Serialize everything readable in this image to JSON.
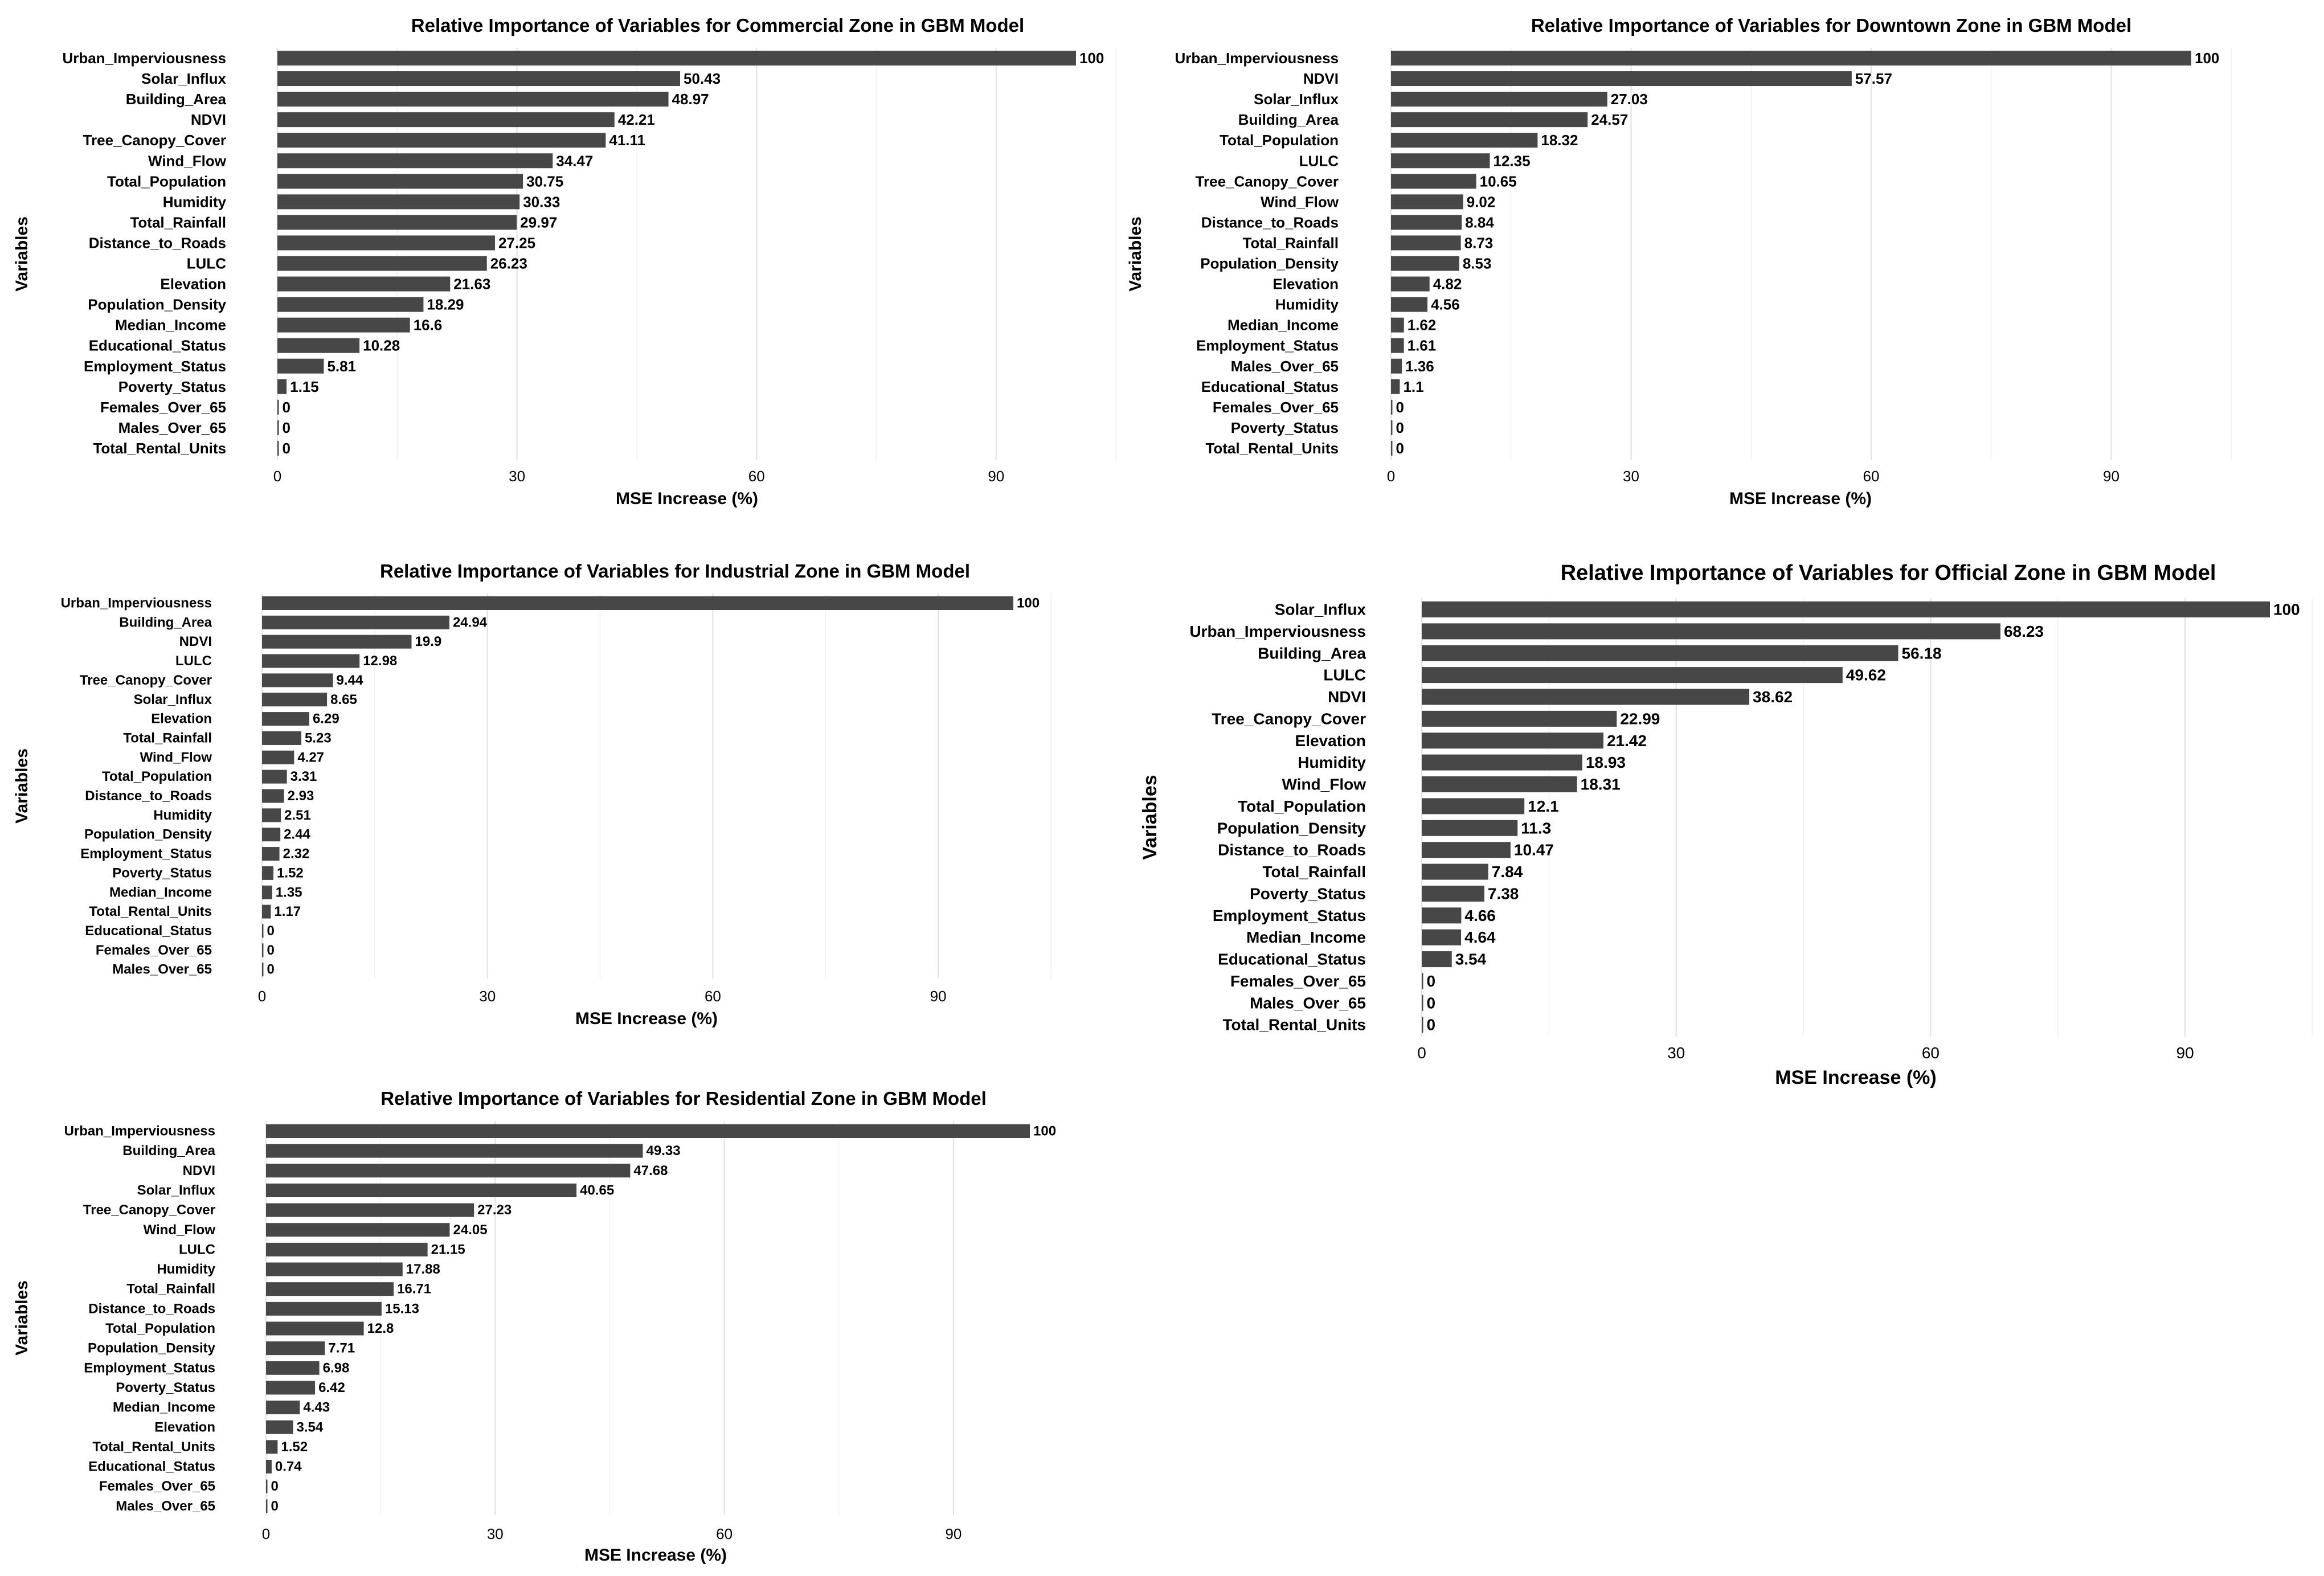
{
  "chart_data": [
    {
      "type": "bar",
      "orientation": "horizontal",
      "title": "Relative Importance of Variables for Commercial Zone in GBM Model",
      "xlabel": "MSE Increase (%)",
      "ylabel": "Variables",
      "xlim": [
        0,
        105
      ],
      "xticks": [
        "0",
        "30",
        "60",
        "90"
      ],
      "grid": true,
      "bar_color": "#474747",
      "categories": [
        "Urban_Imperviousness",
        "Solar_Influx",
        "Building_Area",
        "NDVI",
        "Tree_Canopy_Cover",
        "Wind_Flow",
        "Total_Population",
        "Humidity",
        "Total_Rainfall",
        "Distance_to_Roads",
        "LULC",
        "Elevation",
        "Population_Density",
        "Median_Income",
        "Educational_Status",
        "Employment_Status",
        "Poverty_Status",
        "Females_Over_65",
        "Males_Over_65",
        "Total_Rental_Units"
      ],
      "values": [
        100,
        50.43,
        48.97,
        42.21,
        41.11,
        34.47,
        30.75,
        30.33,
        29.97,
        27.25,
        26.23,
        21.63,
        18.29,
        16.6,
        10.28,
        5.81,
        1.15,
        0,
        0,
        0
      ],
      "value_labels": [
        "100",
        "50.43",
        "48.97",
        "42.21",
        "41.11",
        "34.47",
        "30.75",
        "30.33",
        "29.97",
        "27.25",
        "26.23",
        "21.63",
        "18.29",
        "16.6",
        "10.28",
        "5.81",
        "1.15",
        "0",
        "0",
        "0"
      ]
    },
    {
      "type": "bar",
      "orientation": "horizontal",
      "title": "Relative Importance of Variables for Downtown Zone in GBM Model",
      "xlabel": "MSE Increase (%)",
      "ylabel": "Variables",
      "xlim": [
        0,
        105
      ],
      "xticks": [
        "0",
        "30",
        "60",
        "90"
      ],
      "grid": true,
      "bar_color": "#474747",
      "categories": [
        "Urban_Imperviousness",
        "NDVI",
        "Solar_Influx",
        "Building_Area",
        "Total_Population",
        "LULC",
        "Tree_Canopy_Cover",
        "Wind_Flow",
        "Distance_to_Roads",
        "Total_Rainfall",
        "Population_Density",
        "Elevation",
        "Humidity",
        "Median_Income",
        "Employment_Status",
        "Males_Over_65",
        "Educational_Status",
        "Females_Over_65",
        "Poverty_Status",
        "Total_Rental_Units"
      ],
      "values": [
        100,
        57.57,
        27.03,
        24.57,
        18.32,
        12.35,
        10.65,
        9.02,
        8.84,
        8.73,
        8.53,
        4.82,
        4.56,
        1.62,
        1.61,
        1.36,
        1.1,
        0,
        0,
        0
      ],
      "value_labels": [
        "100",
        "57.57",
        "27.03",
        "24.57",
        "18.32",
        "12.35",
        "10.65",
        "9.02",
        "8.84",
        "8.73",
        "8.53",
        "4.82",
        "4.56",
        "1.62",
        "1.61",
        "1.36",
        "1.1",
        "0",
        "0",
        "0"
      ]
    },
    {
      "type": "bar",
      "orientation": "horizontal",
      "title": "Relative Importance of Variables for Industrial Zone in GBM Model",
      "xlabel": "MSE Increase (%)",
      "ylabel": "Variables",
      "xlim": [
        0,
        105
      ],
      "xticks": [
        "0",
        "30",
        "60",
        "90"
      ],
      "grid": true,
      "bar_color": "#474747",
      "categories": [
        "Urban_Imperviousness",
        "Building_Area",
        "NDVI",
        "LULC",
        "Tree_Canopy_Cover",
        "Solar_Influx",
        "Elevation",
        "Total_Rainfall",
        "Wind_Flow",
        "Total_Population",
        "Distance_to_Roads",
        "Humidity",
        "Population_Density",
        "Employment_Status",
        "Poverty_Status",
        "Median_Income",
        "Total_Rental_Units",
        "Educational_Status",
        "Females_Over_65",
        "Males_Over_65"
      ],
      "values": [
        100,
        24.94,
        19.9,
        12.98,
        9.44,
        8.65,
        6.29,
        5.23,
        4.27,
        3.31,
        2.93,
        2.51,
        2.44,
        2.32,
        1.52,
        1.35,
        1.17,
        0,
        0,
        0
      ],
      "value_labels": [
        "100",
        "24.94",
        "19.9",
        "12.98",
        "9.44",
        "8.65",
        "6.29",
        "5.23",
        "4.27",
        "3.31",
        "2.93",
        "2.51",
        "2.44",
        "2.32",
        "1.52",
        "1.35",
        "1.17",
        "0",
        "0",
        "0"
      ]
    },
    {
      "type": "bar",
      "orientation": "horizontal",
      "title": "Relative Importance of Variables for Official Zone in GBM Model",
      "xlabel": "MSE Increase (%)",
      "ylabel": "Variables",
      "xlim": [
        0,
        105
      ],
      "xticks": [
        "0",
        "30",
        "60",
        "90"
      ],
      "grid": true,
      "bar_color": "#474747",
      "categories": [
        "Solar_Influx",
        "Urban_Imperviousness",
        "Building_Area",
        "LULC",
        "NDVI",
        "Tree_Canopy_Cover",
        "Elevation",
        "Humidity",
        "Wind_Flow",
        "Total_Population",
        "Population_Density",
        "Distance_to_Roads",
        "Total_Rainfall",
        "Poverty_Status",
        "Employment_Status",
        "Median_Income",
        "Educational_Status",
        "Females_Over_65",
        "Males_Over_65",
        "Total_Rental_Units"
      ],
      "values": [
        100,
        68.23,
        56.18,
        49.62,
        38.62,
        22.99,
        21.42,
        18.93,
        18.31,
        12.1,
        11.3,
        10.47,
        7.84,
        7.38,
        4.66,
        4.64,
        3.54,
        0,
        0,
        0
      ],
      "value_labels": [
        "100",
        "68.23",
        "56.18",
        "49.62",
        "38.62",
        "22.99",
        "21.42",
        "18.93",
        "18.31",
        "12.1",
        "11.3",
        "10.47",
        "7.84",
        "7.38",
        "4.66",
        "4.64",
        "3.54",
        "0",
        "0",
        "0"
      ]
    },
    {
      "type": "bar",
      "orientation": "horizontal",
      "title": "Relative Importance of Variables for Residential Zone in GBM Model",
      "xlabel": "MSE Increase (%)",
      "ylabel": "Variables",
      "xlim": [
        0,
        105
      ],
      "xticks": [
        "0",
        "30",
        "60",
        "90"
      ],
      "grid": true,
      "bar_color": "#474747",
      "categories": [
        "Urban_Imperviousness",
        "Building_Area",
        "NDVI",
        "Solar_Influx",
        "Tree_Canopy_Cover",
        "Wind_Flow",
        "LULC",
        "Humidity",
        "Total_Rainfall",
        "Distance_to_Roads",
        "Total_Population",
        "Population_Density",
        "Employment_Status",
        "Poverty_Status",
        "Median_Income",
        "Elevation",
        "Total_Rental_Units",
        "Educational_Status",
        "Females_Over_65",
        "Males_Over_65"
      ],
      "values": [
        100,
        49.33,
        47.68,
        40.65,
        27.23,
        24.05,
        21.15,
        17.88,
        16.71,
        15.13,
        12.8,
        7.71,
        6.98,
        6.42,
        4.43,
        3.54,
        1.52,
        0.74,
        0,
        0
      ],
      "value_labels": [
        "100",
        "49.33",
        "47.68",
        "40.65",
        "27.23",
        "24.05",
        "21.15",
        "17.88",
        "16.71",
        "15.13",
        "12.8",
        "7.71",
        "6.98",
        "6.42",
        "4.43",
        "3.54",
        "1.52",
        "0.74",
        "0",
        "0"
      ]
    }
  ]
}
